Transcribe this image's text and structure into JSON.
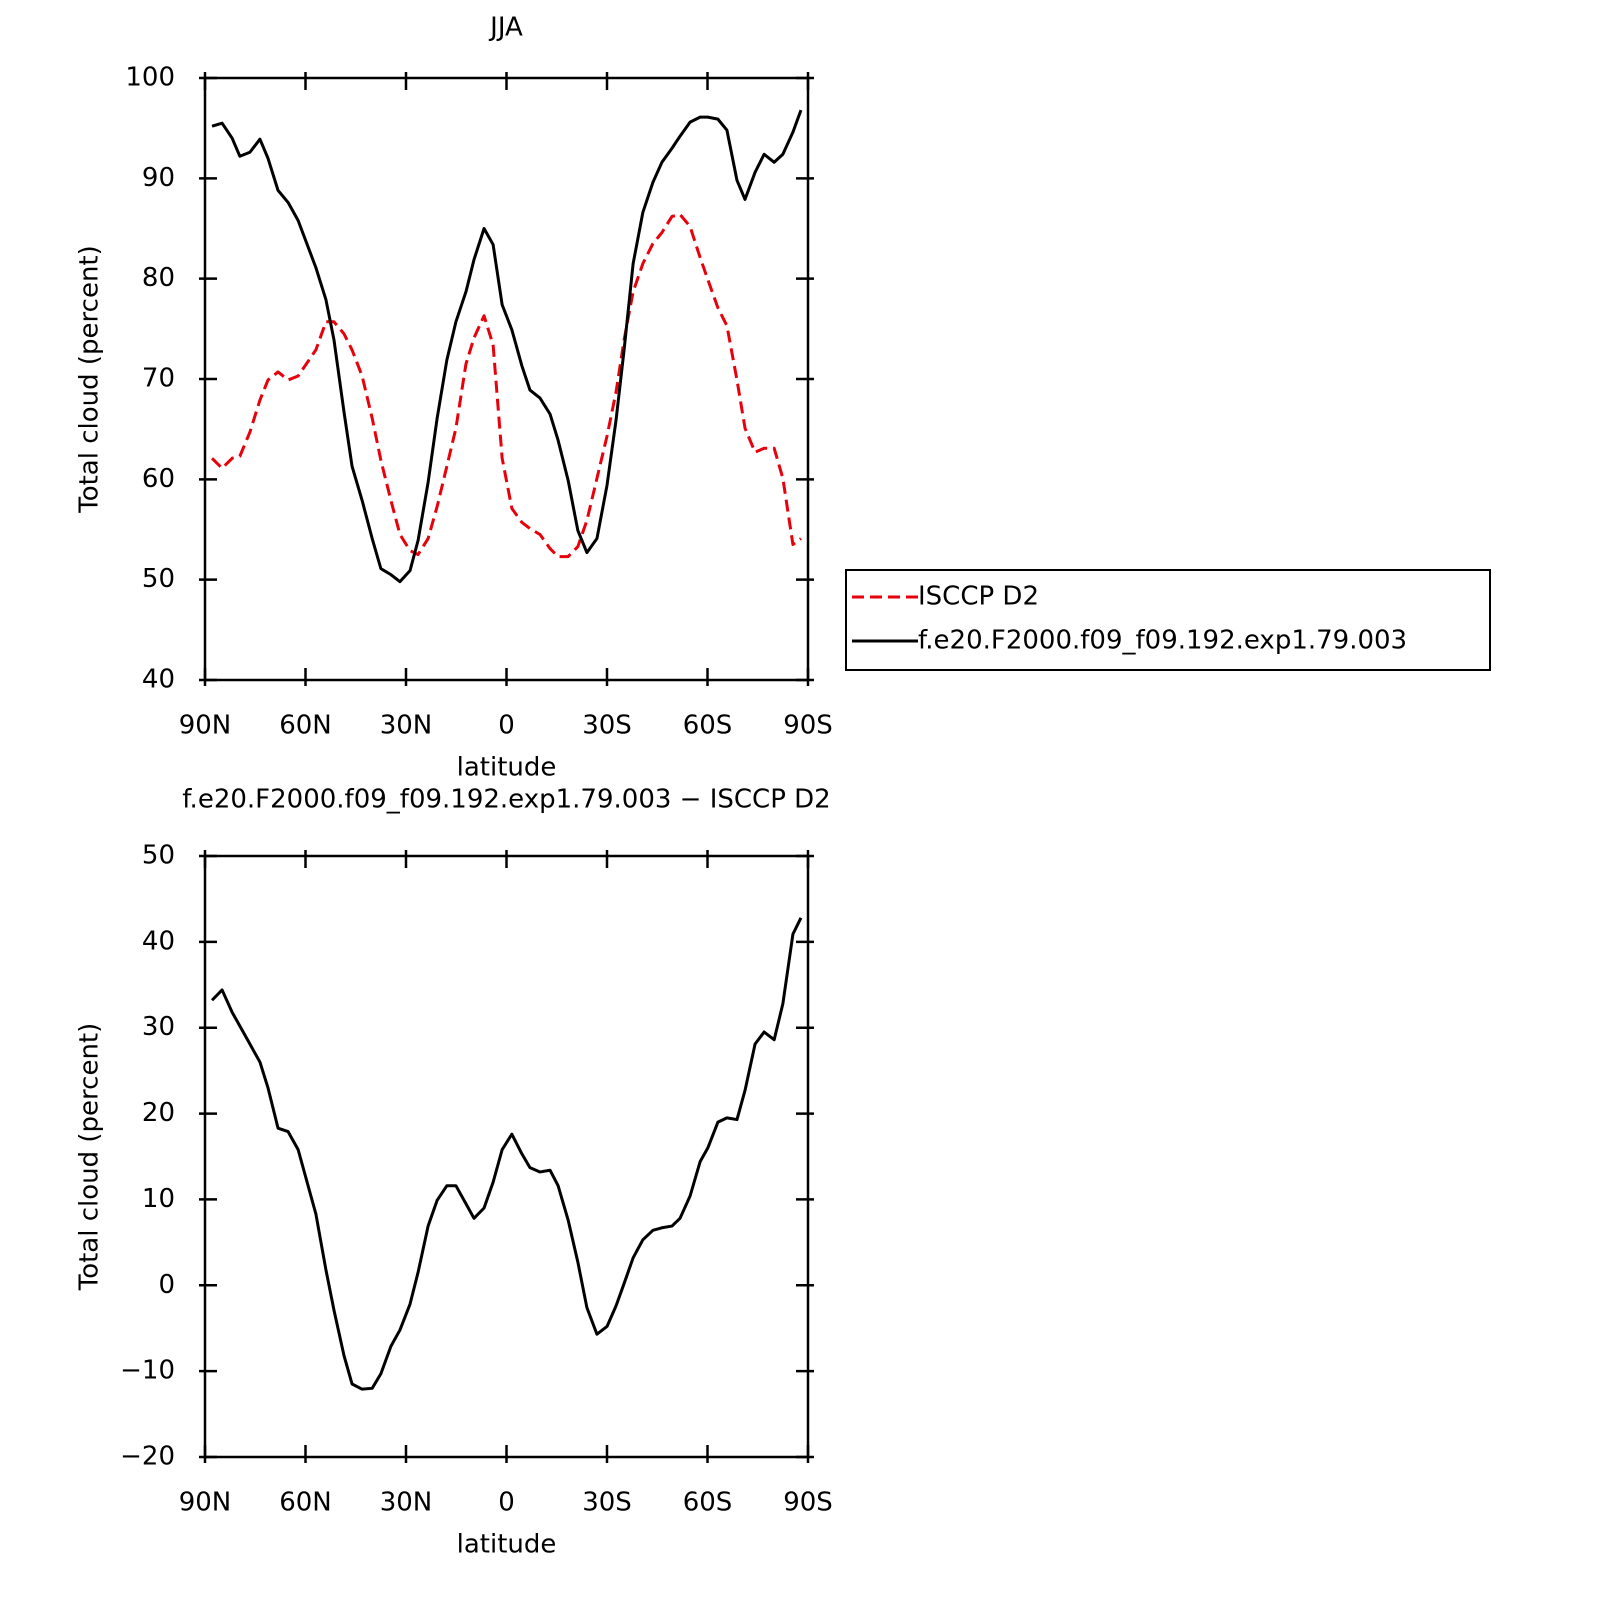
{
  "chart_data": [
    {
      "type": "line",
      "title": "JJA",
      "xlabel": "latitude",
      "ylabel": "Total cloud (percent)",
      "x": [
        87.9,
        84.9,
        81.9,
        79.6,
        76.6,
        73.6,
        71.2,
        68.2,
        65.2,
        62.2,
        56.9,
        53.9,
        51.5,
        48.5,
        46.1,
        43.1,
        40.1,
        37.5,
        34.5,
        31.8,
        28.8,
        26.4,
        23.4,
        20.7,
        17.8,
        15.1,
        12.1,
        9.7,
        6.7,
        4.0,
        1.3,
        -1.6,
        -4.6,
        -7.0,
        -10.0,
        -13.0,
        -15.4,
        -18.4,
        -21.3,
        -24.0,
        -27.0,
        -30.0,
        -32.7,
        -35.1,
        -37.8,
        -40.7,
        -43.7,
        -46.4,
        -49.4,
        -51.8,
        -54.8,
        -57.8,
        -60.1,
        -63.1,
        -65.8,
        -68.8,
        -71.2,
        -74.2,
        -76.9,
        -79.9,
        -82.5,
        -85.5,
        -87.9
      ],
      "series": [
        {
          "name": "ISCCP D2",
          "color": "#e8000b",
          "dash": true,
          "values": [
            62.1,
            61.1,
            62.1,
            62.3,
            64.7,
            67.9,
            69.9,
            70.7,
            69.9,
            70.3,
            72.9,
            75.7,
            75.7,
            74.5,
            72.9,
            70.3,
            66.1,
            61.9,
            57.9,
            54.5,
            52.9,
            52.5,
            54.1,
            57.3,
            61.3,
            65.1,
            71.5,
            74.1,
            76.3,
            73.4,
            62.1,
            57.1,
            55.7,
            55.1,
            54.5,
            53.1,
            52.3,
            52.3,
            53.3,
            55.9,
            60.1,
            64.3,
            68.7,
            73.9,
            78.7,
            81.5,
            83.5,
            84.6,
            86.2,
            86.4,
            85.2,
            82.1,
            79.9,
            77.1,
            75.3,
            69.9,
            65.1,
            62.7,
            63.1,
            63.1,
            60.1,
            53.5,
            54.1
          ]
        },
        {
          "name": "f.e20.F2000.f09_f09.192.exp1.79.003",
          "color": "#000000",
          "dash": false,
          "values": [
            95.2,
            95.5,
            94.0,
            92.2,
            92.6,
            93.9,
            92.0,
            88.8,
            87.6,
            85.8,
            81.1,
            77.9,
            73.9,
            66.7,
            61.3,
            57.9,
            54.1,
            51.1,
            50.5,
            49.8,
            50.9,
            53.9,
            59.7,
            66.1,
            71.9,
            75.7,
            78.7,
            81.9,
            85.0,
            83.4,
            77.4,
            74.9,
            71.3,
            68.9,
            68.1,
            66.5,
            63.9,
            59.9,
            54.9,
            52.7,
            54.1,
            59.4,
            65.9,
            72.9,
            81.5,
            86.6,
            89.6,
            91.6,
            93.0,
            94.2,
            95.6,
            96.1,
            96.1,
            95.9,
            94.8,
            89.8,
            87.9,
            90.6,
            92.4,
            91.6,
            92.4,
            94.6,
            96.8
          ]
        }
      ],
      "xlim": [
        90,
        -90
      ],
      "xticks": [
        {
          "value": 90,
          "label": "90N"
        },
        {
          "value": 60,
          "label": "60N"
        },
        {
          "value": 30,
          "label": "30N"
        },
        0,
        {
          "value": -30,
          "label": "30S"
        },
        {
          "value": -60,
          "label": "60S"
        },
        {
          "value": -90,
          "label": "90S"
        }
      ],
      "ylim": [
        40,
        100
      ],
      "yticks": [
        40,
        50,
        60,
        70,
        80,
        90,
        100
      ],
      "legend": "outside-right"
    },
    {
      "type": "line",
      "title": "f.e20.F2000.f09_f09.192.exp1.79.003 − ISCCP D2",
      "xlabel": "latitude",
      "ylabel": "Total cloud (percent)",
      "x": [
        87.9,
        84.9,
        81.9,
        79.6,
        76.6,
        73.6,
        71.2,
        68.2,
        65.2,
        62.2,
        56.9,
        53.9,
        51.5,
        48.5,
        46.1,
        43.1,
        40.1,
        37.5,
        34.5,
        31.8,
        28.8,
        26.4,
        23.4,
        20.7,
        17.8,
        15.1,
        12.1,
        9.7,
        6.7,
        4.0,
        1.3,
        -1.6,
        -4.6,
        -7.0,
        -10.0,
        -13.0,
        -15.4,
        -18.4,
        -21.3,
        -24.0,
        -27.0,
        -30.0,
        -32.7,
        -35.1,
        -37.8,
        -40.7,
        -43.7,
        -46.4,
        -49.4,
        -51.8,
        -54.8,
        -57.8,
        -60.1,
        -63.1,
        -65.8,
        -68.8,
        -71.2,
        -74.2,
        -76.9,
        -79.9,
        -82.5,
        -85.5,
        -87.9
      ],
      "series": [
        {
          "color": "#000000",
          "dash": false,
          "values": [
            33.2,
            34.4,
            31.8,
            30.2,
            28.1,
            26.0,
            23.0,
            18.3,
            17.9,
            15.8,
            8.3,
            1.8,
            -2.9,
            -8.2,
            -11.5,
            -12.1,
            -12.0,
            -10.3,
            -7.1,
            -5.2,
            -2.2,
            1.5,
            6.9,
            9.9,
            11.6,
            11.6,
            9.5,
            7.8,
            9.0,
            12.0,
            15.8,
            17.6,
            15.3,
            13.7,
            13.2,
            13.4,
            11.6,
            7.6,
            2.7,
            -2.6,
            -5.7,
            -4.8,
            -2.4,
            0.2,
            3.2,
            5.3,
            6.4,
            6.7,
            6.9,
            7.8,
            10.4,
            14.4,
            16.0,
            19.0,
            19.5,
            19.3,
            22.7,
            28.1,
            29.5,
            28.6,
            32.8,
            40.9,
            42.8
          ]
        }
      ],
      "xlim": [
        90,
        -90
      ],
      "xticks": [
        {
          "value": 90,
          "label": "90N"
        },
        {
          "value": 60,
          "label": "60N"
        },
        {
          "value": 30,
          "label": "30N"
        },
        0,
        {
          "value": -30,
          "label": "30S"
        },
        {
          "value": -60,
          "label": "60S"
        },
        {
          "value": -90,
          "label": "90S"
        }
      ],
      "ylim": [
        -20,
        50
      ],
      "yticks": [
        {
          "value": -20,
          "label": "−20"
        },
        {
          "value": -10,
          "label": "−10"
        },
        0,
        10,
        20,
        30,
        40,
        50
      ]
    }
  ]
}
